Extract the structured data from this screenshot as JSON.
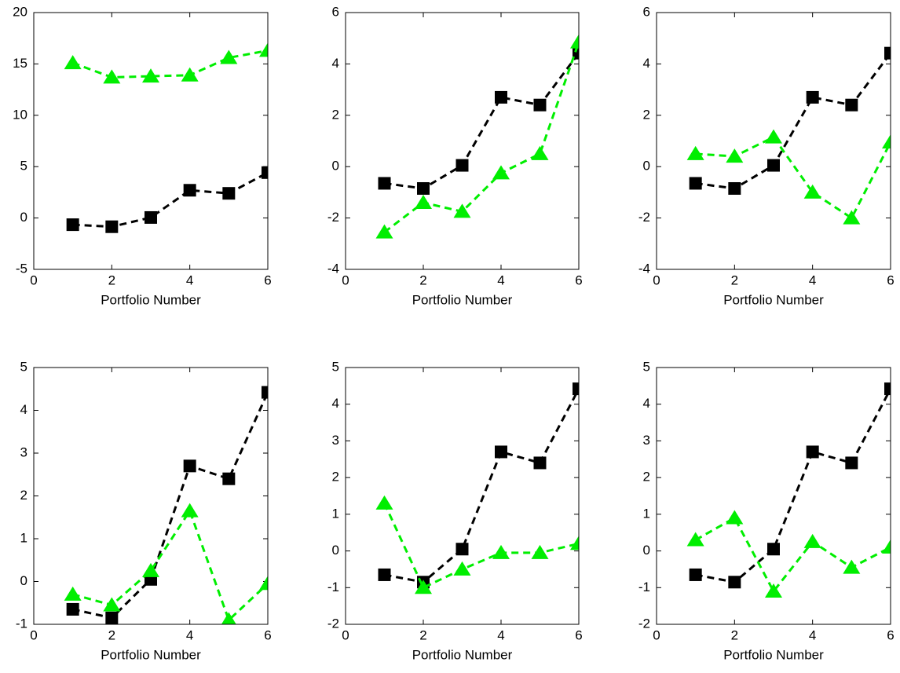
{
  "chart_data": [
    {
      "type": "line",
      "xlabel": "Portfolio Number",
      "x": [
        1,
        2,
        3,
        4,
        5,
        6
      ],
      "xlim": [
        0,
        6
      ],
      "xticks": [
        0,
        2,
        4,
        6
      ],
      "ylim": [
        -5,
        20
      ],
      "yticks": [
        -5,
        0,
        5,
        10,
        15,
        20
      ],
      "linestyle": "dashed",
      "series": [
        {
          "color": "#000000",
          "marker": "square",
          "values": [
            -0.65,
            -0.85,
            0.05,
            2.7,
            2.4,
            4.42
          ]
        },
        {
          "color": "#00ee00",
          "marker": "triangle",
          "values": [
            15.1,
            13.7,
            13.8,
            13.9,
            15.6,
            16.3
          ]
        }
      ]
    },
    {
      "type": "line",
      "xlabel": "Portfolio Number",
      "x": [
        1,
        2,
        3,
        4,
        5,
        6
      ],
      "xlim": [
        0,
        6
      ],
      "xticks": [
        0,
        2,
        4,
        6
      ],
      "ylim": [
        -4,
        6
      ],
      "yticks": [
        -4,
        -2,
        0,
        2,
        4,
        6
      ],
      "linestyle": "dashed",
      "series": [
        {
          "color": "#000000",
          "marker": "square",
          "values": [
            -0.65,
            -0.85,
            0.05,
            2.7,
            2.4,
            4.42
          ]
        },
        {
          "color": "#00ee00",
          "marker": "triangle",
          "values": [
            -2.55,
            -1.4,
            -1.75,
            -0.25,
            0.5,
            4.85
          ]
        }
      ]
    },
    {
      "type": "line",
      "xlabel": "Portfolio Number",
      "x": [
        1,
        2,
        3,
        4,
        5,
        6
      ],
      "xlim": [
        0,
        6
      ],
      "xticks": [
        0,
        2,
        4,
        6
      ],
      "ylim": [
        -4,
        6
      ],
      "yticks": [
        -4,
        -2,
        0,
        2,
        4,
        6
      ],
      "linestyle": "dashed",
      "series": [
        {
          "color": "#000000",
          "marker": "square",
          "values": [
            -0.65,
            -0.85,
            0.05,
            2.7,
            2.4,
            4.42
          ]
        },
        {
          "color": "#00ee00",
          "marker": "triangle",
          "values": [
            0.5,
            0.4,
            1.15,
            -1.0,
            -2.0,
            0.95
          ]
        }
      ]
    },
    {
      "type": "line",
      "xlabel": "Portfolio Number",
      "x": [
        1,
        2,
        3,
        4,
        5,
        6
      ],
      "xlim": [
        0,
        6
      ],
      "xticks": [
        0,
        2,
        4,
        6
      ],
      "ylim": [
        -1,
        5
      ],
      "yticks": [
        -1,
        0,
        1,
        2,
        3,
        4,
        5
      ],
      "linestyle": "dashed",
      "series": [
        {
          "color": "#000000",
          "marker": "square",
          "values": [
            -0.65,
            -0.85,
            0.05,
            2.7,
            2.4,
            4.42
          ]
        },
        {
          "color": "#00ee00",
          "marker": "triangle",
          "values": [
            -0.3,
            -0.55,
            0.25,
            1.65,
            -0.9,
            -0.05
          ]
        }
      ]
    },
    {
      "type": "line",
      "xlabel": "Portfolio Number",
      "x": [
        1,
        2,
        3,
        4,
        5,
        6
      ],
      "xlim": [
        0,
        6
      ],
      "xticks": [
        0,
        2,
        4,
        6
      ],
      "ylim": [
        -2,
        5
      ],
      "yticks": [
        -2,
        -1,
        0,
        1,
        2,
        3,
        4,
        5
      ],
      "linestyle": "dashed",
      "series": [
        {
          "color": "#000000",
          "marker": "square",
          "values": [
            -0.65,
            -0.85,
            0.05,
            2.7,
            2.4,
            4.42
          ]
        },
        {
          "color": "#00ee00",
          "marker": "triangle",
          "values": [
            1.3,
            -1.0,
            -0.5,
            -0.05,
            -0.05,
            0.2
          ]
        }
      ]
    },
    {
      "type": "line",
      "xlabel": "Portfolio Number",
      "x": [
        1,
        2,
        3,
        4,
        5,
        6
      ],
      "xlim": [
        0,
        6
      ],
      "xticks": [
        0,
        2,
        4,
        6
      ],
      "ylim": [
        -2,
        5
      ],
      "yticks": [
        -2,
        -1,
        0,
        1,
        2,
        3,
        4,
        5
      ],
      "linestyle": "dashed",
      "series": [
        {
          "color": "#000000",
          "marker": "square",
          "values": [
            -0.65,
            -0.85,
            0.05,
            2.7,
            2.4,
            4.42
          ]
        },
        {
          "color": "#00ee00",
          "marker": "triangle",
          "values": [
            0.3,
            0.9,
            -1.1,
            0.25,
            -0.45,
            0.1
          ]
        }
      ]
    }
  ]
}
